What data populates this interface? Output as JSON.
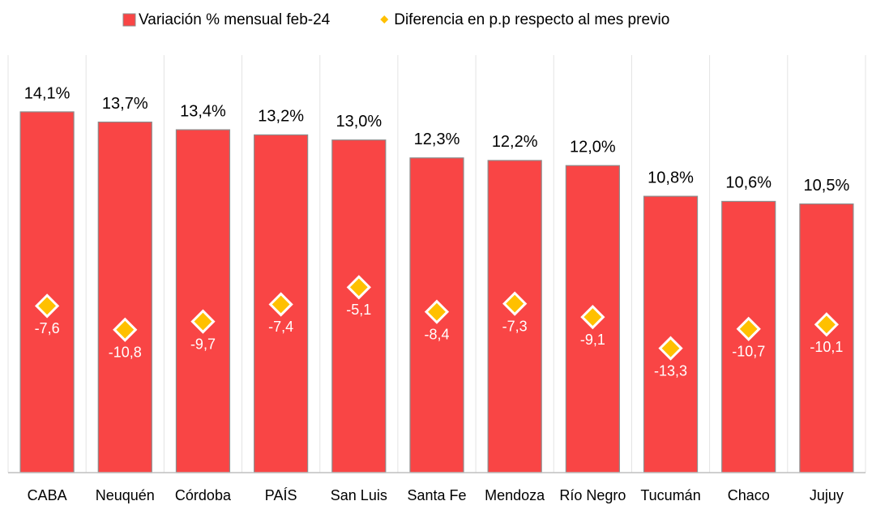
{
  "chart_data": {
    "type": "bar",
    "categories": [
      "CABA",
      "Neuquén",
      "Córdoba",
      "PAÍS",
      "San Luis",
      "Santa Fe",
      "Mendoza",
      "Río Negro",
      "Tucumán",
      "Chaco",
      "Jujuy"
    ],
    "ylim": [
      0,
      16
    ],
    "y2lim": [
      -30,
      25
    ],
    "series": [
      {
        "name": "Variación % mensual feb-24",
        "type": "bar",
        "color": "#f94545",
        "values": [
          14.1,
          13.7,
          13.4,
          13.2,
          13.0,
          12.3,
          12.2,
          12.0,
          10.8,
          10.6,
          10.5
        ],
        "value_labels": [
          "14,1%",
          "13,7%",
          "13,4%",
          "13,2%",
          "13,0%",
          "12,3%",
          "12,2%",
          "12,0%",
          "10,8%",
          "10,6%",
          "10,5%"
        ]
      },
      {
        "name": "Diferencia en p.p respecto al mes previo",
        "type": "scatter",
        "axis": "y2",
        "color": "#ffc000",
        "values": [
          -7.6,
          -10.8,
          -9.7,
          -7.4,
          -5.1,
          -8.4,
          -7.3,
          -9.1,
          -13.3,
          -10.7,
          -10.1
        ],
        "value_labels": [
          "-7,6",
          "-10,8",
          "-9,7",
          "-7,4",
          "-5,1",
          "-8,4",
          "-7,3",
          "-9,1",
          "-13,3",
          "-10,7",
          "-10,1"
        ]
      }
    ],
    "legend": "top"
  }
}
